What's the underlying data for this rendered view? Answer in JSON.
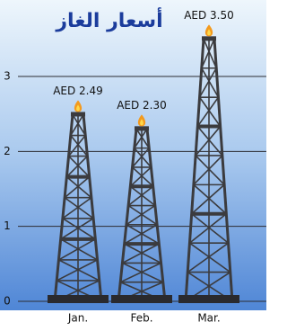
{
  "chart_data": {
    "type": "derrick-bar",
    "title": "أسعار الغاز",
    "categories": [
      "Jan.",
      "Feb.",
      "Mar."
    ],
    "values": [
      2.49,
      2.3,
      3.5
    ],
    "value_labels": [
      "AED 2.49",
      "AED 2.30",
      "AED 3.50"
    ],
    "color": "#3b3b3e",
    "ylim": [
      0,
      3.9
    ],
    "yticks": [
      0,
      1,
      2,
      3
    ],
    "grid": true
  }
}
